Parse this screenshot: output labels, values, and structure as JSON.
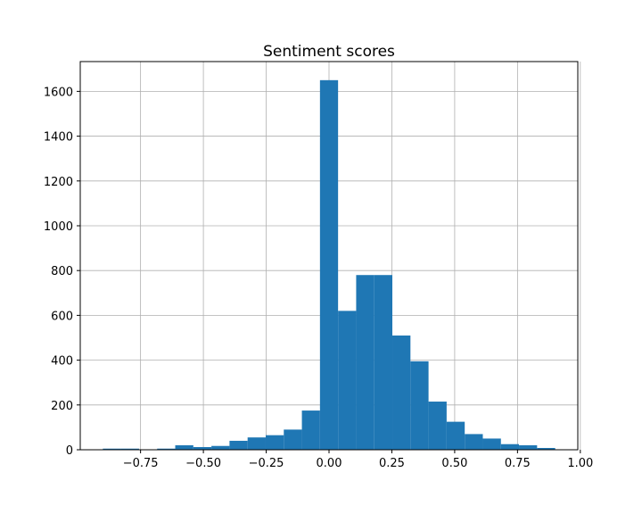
{
  "chart_data": {
    "type": "histogram",
    "title": "Sentiment scores",
    "bins": [
      -0.9,
      -0.828,
      -0.756,
      -0.684,
      -0.612,
      -0.54,
      -0.468,
      -0.396,
      -0.324,
      -0.252,
      -0.18,
      -0.108,
      -0.036,
      0.036,
      0.108,
      0.18,
      0.252,
      0.324,
      0.396,
      0.468,
      0.54,
      0.612,
      0.684,
      0.756,
      0.828,
      0.9
    ],
    "values": [
      5,
      5,
      0,
      5,
      20,
      12,
      17,
      40,
      55,
      65,
      90,
      175,
      1650,
      620,
      780,
      780,
      510,
      395,
      215,
      125,
      70,
      50,
      25,
      20,
      8
    ],
    "color": "#1f77b4",
    "xlim": [
      -0.99,
      0.99
    ],
    "xticks": [
      {
        "value": -0.75,
        "label": "−0.75"
      },
      {
        "value": -0.5,
        "label": "−0.50"
      },
      {
        "value": -0.25,
        "label": "−0.25"
      },
      {
        "value": 0,
        "label": "0.00"
      },
      {
        "value": 0.25,
        "label": "0.25"
      },
      {
        "value": 0.5,
        "label": "0.50"
      },
      {
        "value": 0.75,
        "label": "0.75"
      },
      {
        "value": 1,
        "label": "1.00"
      }
    ],
    "ylim": [
      0,
      1733
    ],
    "yticks": [
      0,
      200,
      400,
      600,
      800,
      1000,
      1200,
      1400,
      1600
    ],
    "grid": true
  }
}
